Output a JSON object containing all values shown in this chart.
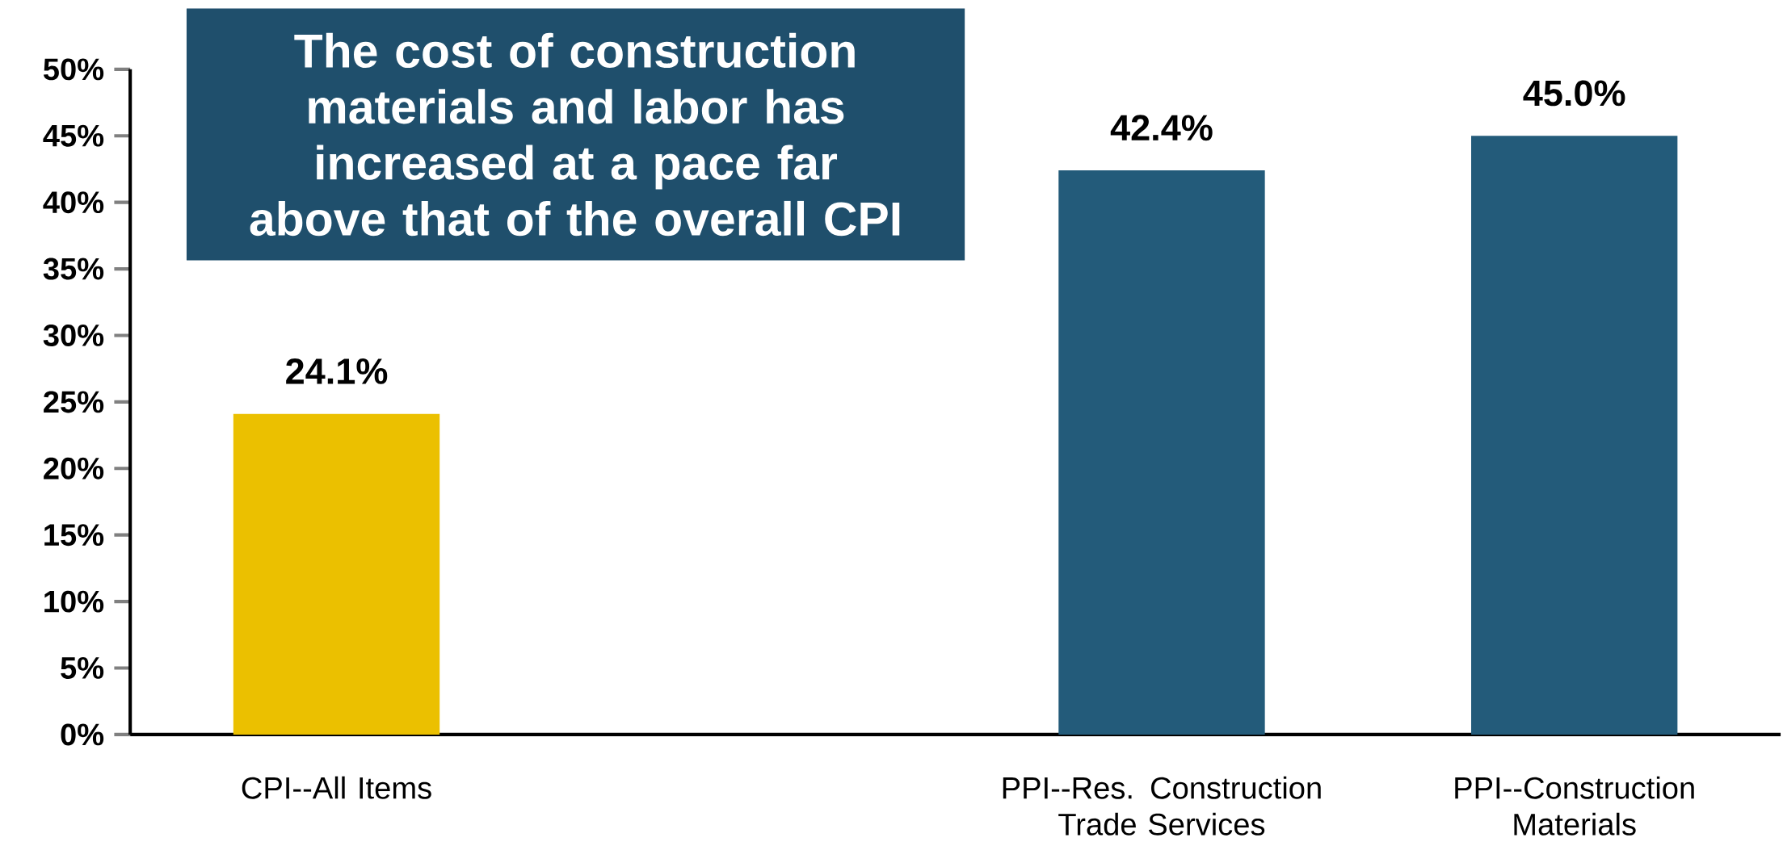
{
  "chart_data": {
    "type": "bar",
    "title": "The cost of construction materials and labor has increased at a pace far above that of the overall CPI",
    "categories": [
      "CPI--All Items",
      null,
      "PPI--Res. Construction Trade Services",
      "PPI--Construction Materials"
    ],
    "values": [
      24.1,
      null,
      42.4,
      45.0
    ],
    "colors": [
      "#ebc000",
      null,
      "#235b7a",
      "#235b7a"
    ],
    "value_labels": [
      "24.1%",
      null,
      "42.4%",
      "45.0%"
    ],
    "ylim": [
      0,
      50
    ],
    "yticks": [
      {
        "value": 0,
        "label": "0%"
      },
      {
        "value": 5,
        "label": "5%"
      },
      {
        "value": 10,
        "label": "10%"
      },
      {
        "value": 15,
        "label": "15%"
      },
      {
        "value": 20,
        "label": "20%"
      },
      {
        "value": 25,
        "label": "25%"
      },
      {
        "value": 30,
        "label": "30%"
      },
      {
        "value": 35,
        "label": "35%"
      },
      {
        "value": 40,
        "label": "40%"
      },
      {
        "value": 45,
        "label": "45%"
      },
      {
        "value": 50,
        "label": "50%"
      }
    ]
  }
}
